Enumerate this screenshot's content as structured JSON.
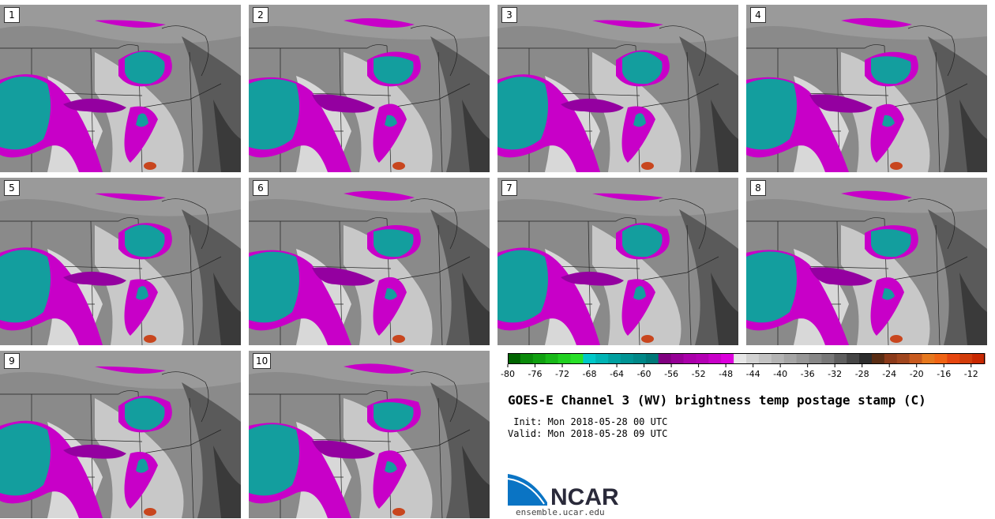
{
  "panels": [
    {
      "label": "1"
    },
    {
      "label": "2"
    },
    {
      "label": "3"
    },
    {
      "label": "4"
    },
    {
      "label": "5"
    },
    {
      "label": "6"
    },
    {
      "label": "7"
    },
    {
      "label": "8"
    },
    {
      "label": "9"
    },
    {
      "label": "10"
    }
  ],
  "colorbar": {
    "colors": [
      "#006400",
      "#0a8a0a",
      "#10a010",
      "#18b818",
      "#20d020",
      "#28e028",
      "#00c8c8",
      "#00b4b4",
      "#00a0a0",
      "#009494",
      "#008888",
      "#007878",
      "#800080",
      "#960096",
      "#aa00aa",
      "#b400b4",
      "#c800c8",
      "#dc00dc",
      "#e6e6e6",
      "#d2d2d2",
      "#c3c3c3",
      "#b4b4b4",
      "#a5a5a5",
      "#969696",
      "#878787",
      "#787878",
      "#5f5f5f",
      "#464646",
      "#2d2d2d",
      "#5a2d14",
      "#8b3a1a",
      "#a0461e",
      "#c85a1e",
      "#e6781e",
      "#f06414",
      "#e6460f",
      "#d23c0a",
      "#c82800"
    ],
    "ticks": [
      "-80",
      "-76",
      "-72",
      "-68",
      "-64",
      "-60",
      "-56",
      "-52",
      "-48",
      "-44",
      "-40",
      "-36",
      "-32",
      "-28",
      "-24",
      "-20",
      "-16",
      "-12"
    ],
    "tick_min": -80,
    "tick_max": -10
  },
  "title": "GOES-E Channel 3 (WV) brightness temp postage stamp (C)",
  "init": " Init: Mon 2018-05-28 00 UTC",
  "valid": "Valid: Mon 2018-05-28 09 UTC",
  "logo": {
    "text": "NCAR",
    "url": "ensemble.ucar.edu",
    "color_blue": "#0a74c4",
    "color_dark": "#2a2a3a"
  },
  "colors": {
    "deep_teal": "#139e9e",
    "magenta": "#c800c8",
    "dark_magenta": "#9400a0",
    "orange": "#c8461e"
  }
}
